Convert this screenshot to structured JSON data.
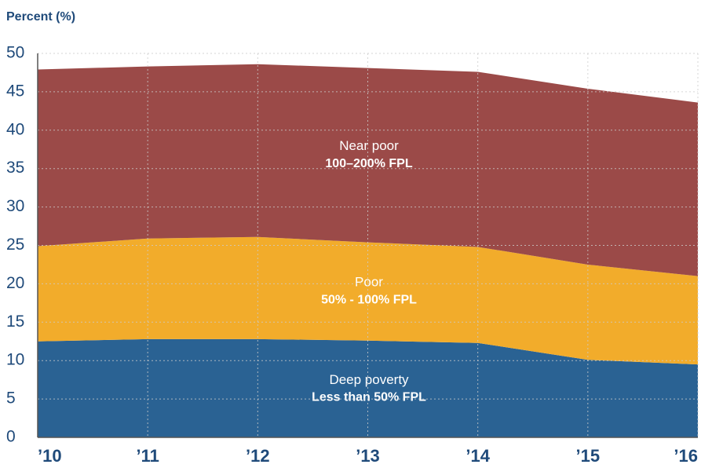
{
  "chart_data": {
    "type": "stacked_area",
    "y_label": "Percent (%)",
    "categories": [
      "’10",
      "’11",
      "’12",
      "’13",
      "’14",
      "’15",
      "’16"
    ],
    "series": [
      {
        "name": "Deep poverty",
        "sublabel": "Less than 50% FPL",
        "color": "#2a6293",
        "values": [
          12.5,
          12.8,
          12.8,
          12.6,
          12.3,
          10.1,
          9.5
        ]
      },
      {
        "name": "Poor",
        "sublabel": "50% - 100% FPL",
        "color": "#f2ac2b",
        "values": [
          12.4,
          13.1,
          13.3,
          12.8,
          12.5,
          12.4,
          11.5
        ]
      },
      {
        "name": "Near poor",
        "sublabel": "100–200% FPL",
        "color": "#9b4a48",
        "values": [
          23.0,
          22.4,
          22.5,
          22.7,
          22.8,
          22.9,
          22.6
        ]
      }
    ],
    "ylim": [
      0,
      50
    ],
    "yticks": [
      0,
      5,
      10,
      15,
      20,
      25,
      30,
      35,
      40,
      45,
      50
    ],
    "grid": true
  }
}
